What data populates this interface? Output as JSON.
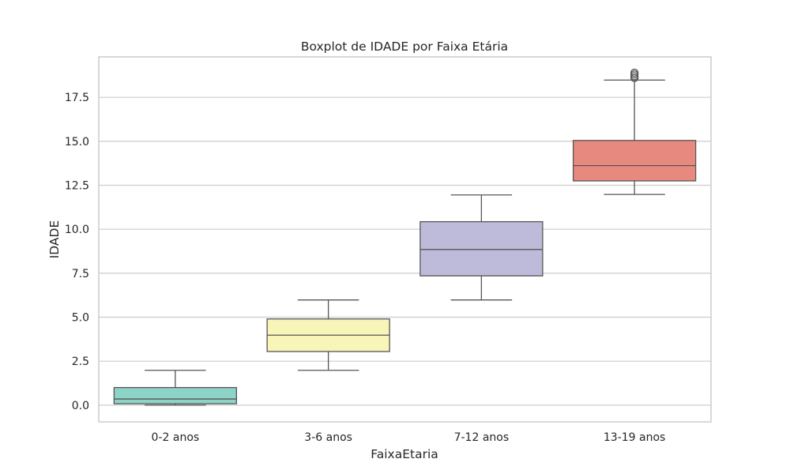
{
  "chart_data": {
    "type": "boxplot",
    "title": "Boxplot de IDADE por Faixa Etária",
    "xlabel": "FaixaEtaria",
    "ylabel": "IDADE",
    "ylim": [
      -0.95,
      19.8
    ],
    "yticks": [
      0.0,
      2.5,
      5.0,
      7.5,
      10.0,
      12.5,
      15.0,
      17.5
    ],
    "ytick_labels": [
      "0.0",
      "2.5",
      "5.0",
      "7.5",
      "10.0",
      "12.5",
      "15.0",
      "17.5"
    ],
    "grid": true,
    "categories": [
      "0-2 anos",
      "3-6 anos",
      "7-12 anos",
      "13-19 anos"
    ],
    "boxes": [
      {
        "category": "0-2 anos",
        "whisker_low": 0.0,
        "q1": 0.08,
        "median": 0.35,
        "q3": 1.0,
        "whisker_high": 1.98,
        "outliers": [],
        "color": "#8dd3c7"
      },
      {
        "category": "3-6 anos",
        "whisker_low": 1.98,
        "q1": 3.05,
        "median": 3.98,
        "q3": 4.9,
        "whisker_high": 5.98,
        "outliers": [],
        "color": "#f7f5b8"
      },
      {
        "category": "7-12 anos",
        "whisker_low": 5.98,
        "q1": 7.35,
        "median": 8.85,
        "q3": 10.43,
        "whisker_high": 11.95,
        "outliers": [],
        "color": "#bebada"
      },
      {
        "category": "13-19 anos",
        "whisker_low": 11.98,
        "q1": 12.75,
        "median": 13.62,
        "q3": 15.05,
        "whisker_high": 18.48,
        "outliers": [
          18.6,
          18.7,
          18.8,
          18.9
        ],
        "color": "#e8897f"
      }
    ]
  },
  "colors": {
    "grid": "#cccccc",
    "frame": "#cccccc",
    "line": "#555555",
    "text": "#262626"
  }
}
